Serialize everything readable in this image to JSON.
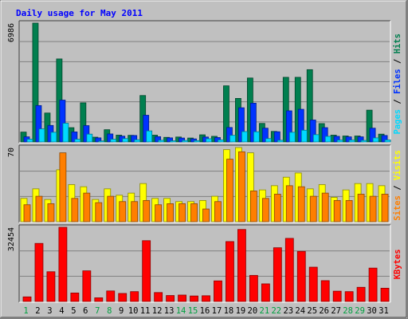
{
  "chart_data": [
    {
      "type": "bar",
      "title": "Daily usage for May 2011",
      "panel": "hits-files-pages",
      "ymax_label": "6986",
      "categories": [
        "1",
        "2",
        "3",
        "4",
        "5",
        "6",
        "7",
        "8",
        "9",
        "10",
        "11",
        "12",
        "13",
        "14",
        "15",
        "16",
        "17",
        "18",
        "19",
        "20",
        "21",
        "22",
        "23",
        "24",
        "25",
        "26",
        "27",
        "28",
        "29",
        "30",
        "31"
      ],
      "weekend_days": [
        "1",
        "7",
        "8",
        "14",
        "15",
        "21",
        "22",
        "28",
        "29"
      ],
      "series": [
        {
          "name": "Hits",
          "color": "#007f4f",
          "values": [
            580,
            6986,
            1700,
            4880,
            840,
            2300,
            280,
            720,
            400,
            390,
            2730,
            400,
            270,
            290,
            230,
            420,
            330,
            3300,
            2560,
            3760,
            1090,
            620,
            3800,
            3800,
            4250,
            1080,
            400,
            350,
            350,
            1870,
            460
          ]
        },
        {
          "name": "Files",
          "color": "#0033ff",
          "values": [
            300,
            2140,
            970,
            2460,
            590,
            960,
            240,
            470,
            340,
            380,
            1570,
            310,
            240,
            230,
            180,
            290,
            260,
            850,
            2010,
            2280,
            810,
            600,
            1830,
            1920,
            1290,
            840,
            330,
            300,
            300,
            810,
            380
          ]
        },
        {
          "name": "Pages",
          "color": "#00d9ff",
          "values": [
            160,
            770,
            570,
            1100,
            160,
            460,
            60,
            160,
            200,
            130,
            650,
            100,
            70,
            90,
            80,
            190,
            120,
            390,
            610,
            600,
            200,
            100,
            570,
            690,
            430,
            330,
            110,
            110,
            90,
            240,
            120
          ]
        }
      ],
      "legend": [
        "Pages",
        "Files",
        "Hits"
      ],
      "legend_colors": [
        "#00d9ff",
        "#0033ff",
        "#007f4f"
      ],
      "legend_placement": "right-vertical"
    },
    {
      "type": "bar",
      "panel": "visits-sites",
      "ymax_label": "70",
      "categories": [
        "1",
        "2",
        "3",
        "4",
        "5",
        "6",
        "7",
        "8",
        "9",
        "10",
        "11",
        "12",
        "13",
        "14",
        "15",
        "16",
        "17",
        "18",
        "19",
        "20",
        "21",
        "22",
        "23",
        "24",
        "25",
        "26",
        "27",
        "28",
        "29",
        "30",
        "31"
      ],
      "series": [
        {
          "name": "Visits",
          "color": "#ffff00",
          "values": [
            22,
            31,
            21,
            49,
            35,
            33,
            21,
            31,
            25,
            27,
            36,
            22,
            22,
            19,
            19,
            20,
            24,
            68,
            70,
            65,
            30,
            34,
            42,
            46,
            31,
            35,
            23,
            30,
            36,
            36,
            34
          ]
        },
        {
          "name": "Sites",
          "color": "#ff7f00",
          "values": [
            16,
            24,
            17,
            65,
            22,
            27,
            18,
            24,
            19,
            19,
            20,
            16,
            17,
            17,
            17,
            12,
            19,
            59,
            66,
            29,
            22,
            26,
            34,
            33,
            24,
            27,
            20,
            20,
            26,
            24,
            26
          ]
        }
      ],
      "legend": [
        "Sites",
        "Visits"
      ],
      "legend_colors": [
        "#ff7f00",
        "#ffff00"
      ],
      "legend_placement": "right-vertical"
    },
    {
      "type": "bar",
      "panel": "kbytes",
      "ymax_label": "32454",
      "categories": [
        "1",
        "2",
        "3",
        "4",
        "5",
        "6",
        "7",
        "8",
        "9",
        "10",
        "11",
        "12",
        "13",
        "14",
        "15",
        "16",
        "17",
        "18",
        "19",
        "20",
        "21",
        "22",
        "23",
        "24",
        "25",
        "26",
        "27",
        "28",
        "29",
        "30",
        "31"
      ],
      "series": [
        {
          "name": "KBytes",
          "color": "#ff0000",
          "values": [
            2000,
            25400,
            13000,
            32454,
            3700,
            13400,
            1600,
            4600,
            3500,
            4300,
            26600,
            3900,
            2600,
            2800,
            2400,
            2500,
            9000,
            26200,
            31500,
            11400,
            7700,
            23500,
            27600,
            21900,
            15000,
            9100,
            4500,
            4300,
            6200,
            14600,
            5800
          ]
        }
      ],
      "legend": [
        "KBytes"
      ],
      "legend_colors": [
        "#ff0000"
      ],
      "legend_placement": "right-vertical"
    }
  ],
  "colors": {
    "background": "#c0c0c0",
    "plot_background": "#c0c0c0",
    "title": "#0000ff",
    "weekday_label": "#000000",
    "weekend_label": "#00a040",
    "gridline": "#808080"
  }
}
